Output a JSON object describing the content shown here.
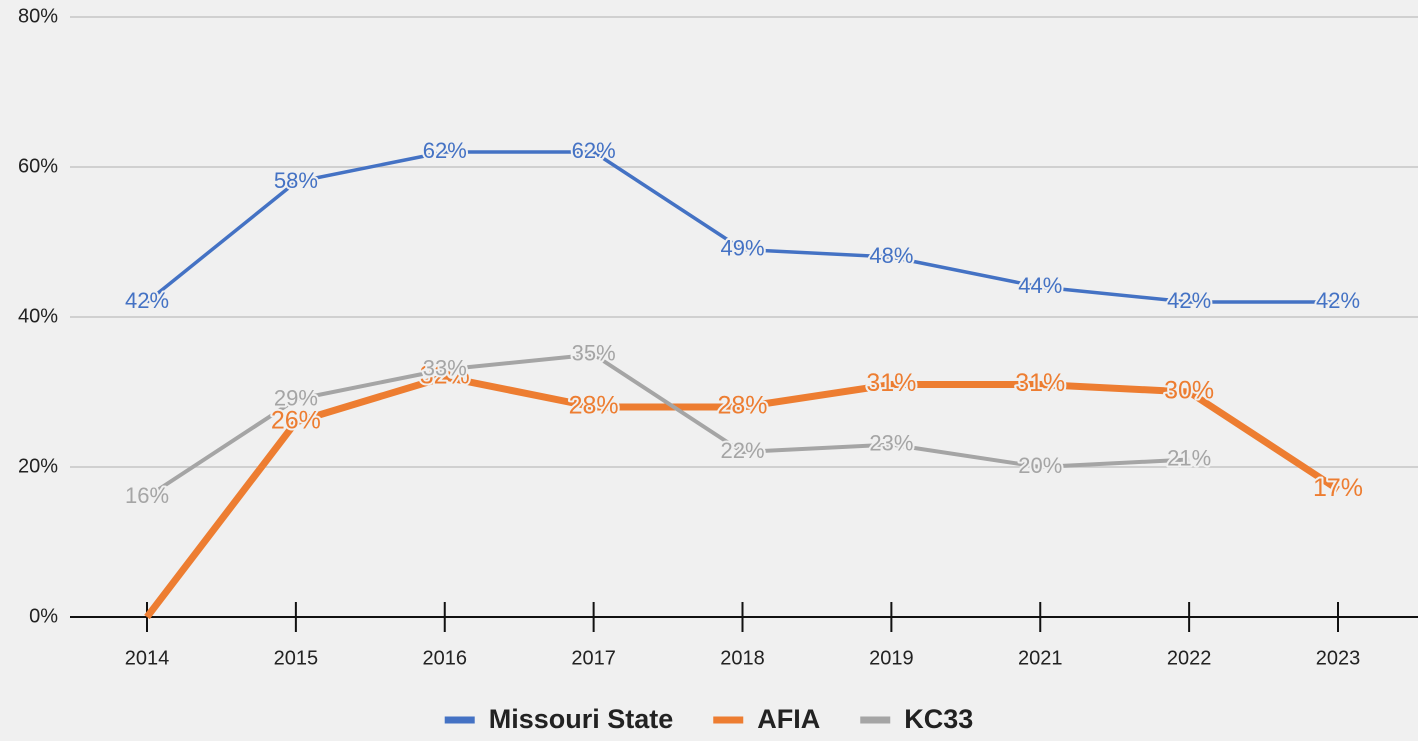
{
  "chart_data": {
    "type": "line",
    "categories": [
      "2014",
      "2015",
      "2016",
      "2017",
      "2018",
      "2019",
      "2021",
      "2022",
      "2023"
    ],
    "series": [
      {
        "name": "Missouri State",
        "color": "#4472c4",
        "values": [
          42,
          58,
          62,
          62,
          49,
          48,
          44,
          42,
          42
        ],
        "value_labels": [
          "42%",
          "58%",
          "62%",
          "62%",
          "49%",
          "48%",
          "44%",
          "42%",
          "42%"
        ]
      },
      {
        "name": "AFIA",
        "color": "#ed7d31",
        "values": [
          0,
          26,
          32,
          28,
          28,
          31,
          31,
          30,
          17
        ],
        "value_labels": [
          null,
          "26%",
          "32%",
          "28%",
          "28%",
          "31%",
          "31%",
          "30%",
          "17%"
        ]
      },
      {
        "name": "KC33",
        "color": "#a5a5a5",
        "values": [
          16,
          29,
          33,
          35,
          22,
          23,
          20,
          21,
          null
        ],
        "value_labels": [
          "16%",
          "29%",
          "33%",
          "35%",
          "22%",
          "23%",
          "20%",
          "21%",
          null
        ]
      }
    ],
    "ylim": [
      0,
      80
    ],
    "yticks": [
      {
        "value": 0,
        "label": "0%"
      },
      {
        "value": 20,
        "label": "20%"
      },
      {
        "value": 40,
        "label": "40%"
      },
      {
        "value": 60,
        "label": "60%"
      },
      {
        "value": 80,
        "label": "80%"
      }
    ],
    "grid": true,
    "legend": "bottom"
  }
}
